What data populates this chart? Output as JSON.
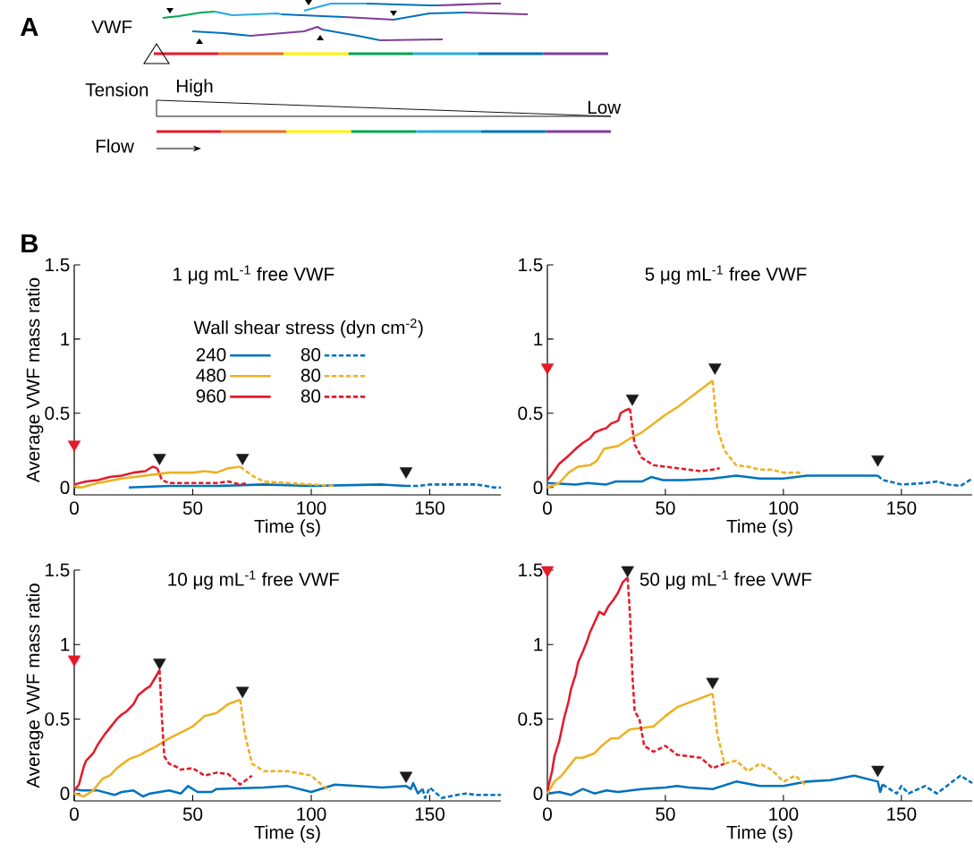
{
  "chart_data": [
    {
      "type": "other",
      "annotations": [
        "A",
        "VWF",
        "Tension",
        "High",
        "Low",
        "Flow"
      ]
    },
    {
      "type": "line",
      "title": "1 μg mL$^{-1}$ free VWF",
      "xlabel": "Time (s)",
      "ylabel": "Average VWF mass ratio",
      "annotations": [
        "B"
      ],
      "xlim": [
        0,
        180
      ],
      "ylim": [
        -0.05,
        1.5
      ],
      "xticks": [
        0,
        50,
        100,
        150
      ],
      "yticks": [
        0,
        0.5,
        1,
        1.5
      ],
      "legend": "top right",
      "legend_title": "Wall shear stress (dyn cm$^{-2}$)",
      "series": [
        {
          "name": "240",
          "color": "#0072bd",
          "line_style": "solid",
          "x": [
            23,
            40,
            60,
            80,
            100,
            130,
            140
          ],
          "values": [
            0,
            0.01,
            0.01,
            0.02,
            0.01,
            0.02,
            0.01
          ]
        },
        {
          "name": "80",
          "color": "#0072bd",
          "line_style": "dashed",
          "x": [
            140,
            145,
            150,
            160,
            170,
            177,
            180
          ],
          "values": [
            0.01,
            0.01,
            0.02,
            0.02,
            0.02,
            0,
            0
          ]
        },
        {
          "name": "480",
          "color": "#edb120",
          "line_style": "solid",
          "x": [
            0,
            3,
            10,
            20,
            30,
            40,
            50,
            55,
            60,
            65,
            70
          ],
          "values": [
            0.01,
            0,
            0.03,
            0.06,
            0.08,
            0.1,
            0.1,
            0.11,
            0.1,
            0.13,
            0.14
          ]
        },
        {
          "name": "80",
          "color": "#edb120",
          "line_style": "dashed",
          "x": [
            70,
            75,
            80,
            90,
            100,
            110
          ],
          "values": [
            0.14,
            0.08,
            0.04,
            0.03,
            0.02,
            0.01
          ]
        },
        {
          "name": "960",
          "color": "#e41a2a",
          "line_style": "solid",
          "x": [
            0,
            5,
            10,
            15,
            20,
            25,
            30,
            33,
            35
          ],
          "values": [
            0.02,
            0.04,
            0.05,
            0.07,
            0.08,
            0.1,
            0.11,
            0.14,
            0.13
          ]
        },
        {
          "name": "80",
          "color": "#e41a2a",
          "line_style": "dashed",
          "x": [
            35,
            37,
            40,
            50,
            60,
            65,
            70,
            73
          ],
          "values": [
            0.13,
            0.05,
            0.03,
            0.03,
            0.03,
            0.04,
            0.02,
            0.03
          ]
        },
        {
          "type": "scatter",
          "marker": "triangle",
          "colors": [
            "#e41a2a",
            "#1a1a1a",
            "#1a1a1a",
            "#1a1a1a"
          ],
          "x": [
            0,
            36,
            71,
            140
          ],
          "values": [
            0.29,
            0.2,
            0.2,
            0.11
          ]
        }
      ]
    },
    {
      "type": "line",
      "title": "5 μg mL$^{-1}$ free VWF",
      "xlabel": "Time (s)",
      "xlim": [
        0,
        180
      ],
      "ylim": [
        -0.05,
        1.5
      ],
      "xticks": [
        0,
        50,
        100,
        150
      ],
      "yticks": [
        0,
        0.5,
        1,
        1.5
      ],
      "series": [
        {
          "color": "#0072bd",
          "line_style": "solid",
          "x": [
            0,
            12,
            17,
            25,
            29,
            35,
            40,
            44,
            49,
            58,
            70,
            80,
            90,
            100,
            110,
            120,
            130,
            140
          ],
          "values": [
            0.03,
            0.02,
            0.03,
            0.02,
            0.04,
            0.04,
            0.04,
            0.07,
            0.05,
            0.05,
            0.06,
            0.08,
            0.06,
            0.06,
            0.08,
            0.08,
            0.08,
            0.08
          ]
        },
        {
          "color": "#0072bd",
          "line_style": "dashed",
          "x": [
            140,
            142,
            145,
            150,
            160,
            165,
            170,
            175,
            180
          ],
          "values": [
            0.08,
            0.05,
            0.04,
            0.02,
            0.03,
            0.04,
            0.02,
            0.01,
            0.06
          ]
        },
        {
          "color": "#edb120",
          "line_style": "solid",
          "x": [
            0,
            5,
            9,
            13,
            18,
            21,
            24,
            30,
            35,
            40,
            50,
            55,
            70
          ],
          "values": [
            0,
            0.03,
            0.1,
            0.14,
            0.15,
            0.18,
            0.26,
            0.28,
            0.33,
            0.37,
            0.49,
            0.54,
            0.72
          ]
        },
        {
          "color": "#edb120",
          "line_style": "dashed",
          "x": [
            70,
            72,
            75,
            80,
            85,
            90,
            95,
            100,
            108
          ],
          "values": [
            0.72,
            0.4,
            0.25,
            0.15,
            0.14,
            0.12,
            0.12,
            0.1,
            0.1
          ]
        },
        {
          "color": "#e41a2a",
          "line_style": "solid",
          "x": [
            0,
            2,
            5,
            8,
            10,
            12,
            15,
            18,
            20,
            23,
            25,
            27,
            30,
            31,
            33,
            35
          ],
          "values": [
            0.05,
            0.09,
            0.16,
            0.2,
            0.23,
            0.26,
            0.3,
            0.33,
            0.37,
            0.39,
            0.4,
            0.43,
            0.45,
            0.5,
            0.52,
            0.53
          ]
        },
        {
          "color": "#e41a2a",
          "line_style": "dashed",
          "x": [
            35,
            36,
            37,
            40,
            45,
            50,
            60,
            65,
            70,
            73
          ],
          "values": [
            0.53,
            0.4,
            0.29,
            0.2,
            0.15,
            0.14,
            0.12,
            0.11,
            0.12,
            0.13
          ]
        },
        {
          "type": "scatter",
          "marker": "triangle",
          "colors": [
            "#e41a2a",
            "#1a1a1a",
            "#1a1a1a",
            "#1a1a1a"
          ],
          "x": [
            0,
            36,
            71,
            140
          ],
          "values": [
            0.81,
            0.6,
            0.81,
            0.19
          ]
        }
      ]
    },
    {
      "type": "line",
      "title": "10 μg mL$^{-1}$ free VWF",
      "xlabel": "Time (s)",
      "ylabel": "Average VWF mass ratio",
      "xlim": [
        0,
        180
      ],
      "ylim": [
        -0.05,
        1.5
      ],
      "xticks": [
        0,
        50,
        100,
        150
      ],
      "yticks": [
        0,
        0.5,
        1,
        1.5
      ],
      "series": [
        {
          "color": "#0072bd",
          "line_style": "solid",
          "x": [
            0,
            3,
            10,
            17,
            20,
            25,
            29,
            32,
            40,
            45,
            48,
            52,
            58,
            60,
            80,
            90,
            100,
            110,
            130,
            140,
            142,
            143,
            145,
            147
          ],
          "values": [
            0.03,
            0.02,
            0.02,
            -0.01,
            0.01,
            0.02,
            -0.02,
            0,
            0.02,
            0,
            0.05,
            0.01,
            0.01,
            0.03,
            0.04,
            0.05,
            0.01,
            0.06,
            0.04,
            0.05,
            0.03,
            0.07,
            0,
            0.03
          ]
        },
        {
          "color": "#0072bd",
          "line_style": "dashed",
          "x": [
            147,
            148,
            150,
            155,
            165,
            170,
            175,
            180
          ],
          "values": [
            0.03,
            -0.03,
            0.04,
            -0.03,
            0,
            -0.01,
            -0.01,
            -0.01
          ]
        },
        {
          "color": "#edb120",
          "line_style": "solid",
          "x": [
            0,
            4,
            8,
            12,
            15,
            18,
            23,
            28,
            30,
            35,
            40,
            50,
            55,
            60,
            65,
            70
          ],
          "values": [
            0,
            -0.02,
            0.02,
            0.1,
            0.12,
            0.17,
            0.23,
            0.26,
            0.28,
            0.32,
            0.37,
            0.45,
            0.52,
            0.54,
            0.6,
            0.63
          ]
        },
        {
          "color": "#edb120",
          "line_style": "dashed",
          "x": [
            70,
            72,
            75,
            80,
            90,
            100,
            105,
            108
          ],
          "values": [
            0.63,
            0.4,
            0.2,
            0.15,
            0.15,
            0.12,
            0.05,
            0.02
          ]
        },
        {
          "color": "#e41a2a",
          "line_style": "solid",
          "x": [
            0,
            2,
            4,
            5,
            8,
            10,
            13,
            16,
            18,
            20,
            22,
            25,
            27,
            30,
            32,
            35,
            36
          ],
          "values": [
            0.02,
            0.06,
            0.18,
            0.22,
            0.27,
            0.33,
            0.4,
            0.46,
            0.5,
            0.53,
            0.55,
            0.6,
            0.66,
            0.7,
            0.72,
            0.8,
            0.83
          ]
        },
        {
          "color": "#e41a2a",
          "line_style": "dashed",
          "x": [
            36,
            37,
            38,
            40,
            43,
            45,
            50,
            55,
            60,
            65,
            70,
            75
          ],
          "values": [
            0.83,
            0.5,
            0.25,
            0.2,
            0.18,
            0.16,
            0.17,
            0.12,
            0.14,
            0.13,
            0.06,
            0.12
          ]
        },
        {
          "type": "scatter",
          "marker": "triangle",
          "colors": [
            "#e41a2a",
            "#1a1a1a",
            "#1a1a1a",
            "#1a1a1a"
          ],
          "x": [
            0,
            36,
            71,
            140
          ],
          "values": [
            0.9,
            0.88,
            0.69,
            0.12
          ]
        }
      ]
    },
    {
      "type": "line",
      "title": "50 μg mL$^{-1}$ free VWF",
      "xlabel": "Time (s)",
      "xlim": [
        0,
        180
      ],
      "ylim": [
        -0.05,
        1.5
      ],
      "xticks": [
        0,
        50,
        100,
        150
      ],
      "yticks": [
        0,
        0.5,
        1,
        1.5
      ],
      "series": [
        {
          "color": "#0072bd",
          "line_style": "solid",
          "x": [
            0,
            5,
            10,
            15,
            20,
            25,
            30,
            35,
            40,
            50,
            55,
            60,
            70,
            80,
            90,
            100,
            110,
            120,
            130,
            140,
            141,
            142
          ],
          "values": [
            0,
            0.01,
            -0.01,
            0.03,
            0,
            0.02,
            0.01,
            0.02,
            0.03,
            0.04,
            0.05,
            0.04,
            0.03,
            0.08,
            0.05,
            0.05,
            0.08,
            0.09,
            0.12,
            0.08,
            0.01,
            0.06
          ]
        },
        {
          "color": "#0072bd",
          "line_style": "dashed",
          "x": [
            142,
            145,
            148,
            150,
            153,
            160,
            165,
            175,
            180
          ],
          "values": [
            0.06,
            0.03,
            0,
            0.05,
            0,
            0.05,
            0,
            0.12,
            0.07
          ]
        },
        {
          "color": "#edb120",
          "line_style": "solid",
          "x": [
            0,
            3,
            6,
            10,
            12,
            15,
            20,
            23,
            27,
            30,
            35,
            40,
            45,
            50,
            55,
            60,
            65,
            70
          ],
          "values": [
            0,
            0.08,
            0.12,
            0.2,
            0.24,
            0.24,
            0.27,
            0.32,
            0.37,
            0.37,
            0.43,
            0.44,
            0.45,
            0.52,
            0.58,
            0.61,
            0.64,
            0.67
          ]
        },
        {
          "color": "#edb120",
          "line_style": "dashed",
          "x": [
            70,
            72,
            75,
            80,
            85,
            90,
            95,
            100,
            105,
            110
          ],
          "values": [
            0.67,
            0.4,
            0.2,
            0.22,
            0.15,
            0.2,
            0.16,
            0.08,
            0.12,
            0.05
          ]
        },
        {
          "color": "#e41a2a",
          "line_style": "solid",
          "x": [
            0,
            2,
            3,
            5,
            7,
            9,
            10,
            12,
            13,
            15,
            17,
            18,
            20,
            22,
            24,
            26,
            28,
            30,
            32,
            34
          ],
          "values": [
            0.02,
            0.15,
            0.25,
            0.35,
            0.5,
            0.62,
            0.7,
            0.8,
            0.88,
            0.95,
            1.03,
            1.08,
            1.15,
            1.22,
            1.2,
            1.26,
            1.3,
            1.35,
            1.42,
            1.45
          ]
        },
        {
          "color": "#e41a2a",
          "line_style": "dashed",
          "x": [
            34,
            35,
            36,
            37,
            39,
            41,
            45,
            50,
            55,
            60,
            65,
            70,
            75
          ],
          "values": [
            1.45,
            1.2,
            0.8,
            0.55,
            0.5,
            0.32,
            0.28,
            0.32,
            0.26,
            0.25,
            0.24,
            0.17,
            0.2
          ]
        },
        {
          "type": "scatter",
          "marker": "triangle",
          "colors": [
            "#e41a2a",
            "#1a1a1a",
            "#1a1a1a",
            "#1a1a1a"
          ],
          "x": [
            0,
            34,
            70,
            140
          ],
          "values": [
            1.5,
            1.5,
            0.75,
            0.16
          ]
        }
      ]
    }
  ]
}
